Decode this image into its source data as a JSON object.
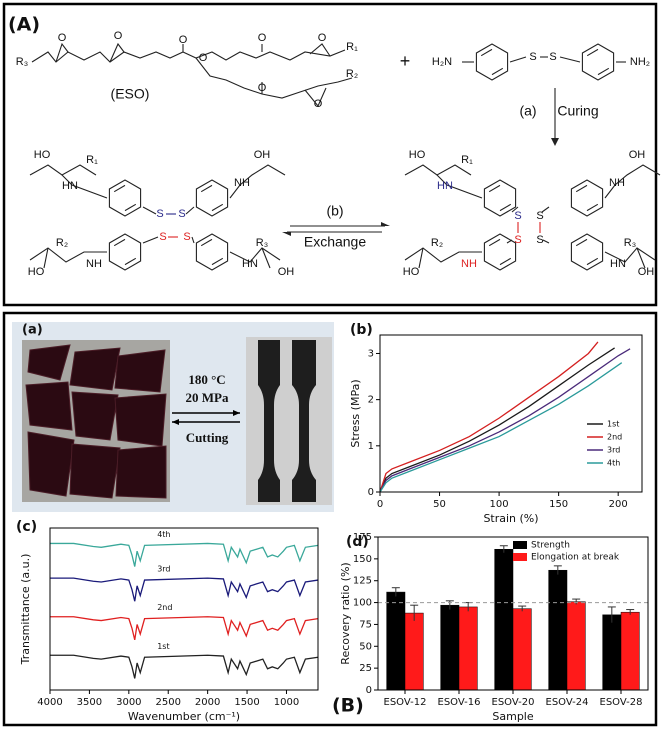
{
  "panel_A": {
    "label": "(A)",
    "texts": [
      "R₃",
      "O",
      "O",
      "O",
      "O",
      "O",
      "O",
      "R₁",
      "O",
      "O",
      "R₂",
      "(ESO)",
      "+",
      "H₂N",
      "S",
      "S",
      "NH₂",
      "(a)",
      "Curing",
      "(b)",
      "Exchange",
      "HO",
      "R₁",
      "HN",
      "S",
      "S",
      "NH",
      "OH",
      "R₂",
      "HO",
      "NH",
      "S",
      "S",
      "HN",
      "R₃",
      "OH",
      "HO",
      "R₁",
      "HN",
      "S",
      "S",
      "NH",
      "OH",
      "R₂",
      "HO",
      "NH",
      "S",
      "S",
      "HN",
      "R₃",
      "OH"
    ]
  },
  "panel_B": {
    "label": "(B)",
    "photo": {
      "panel_label": "(a)",
      "temperature": "180 °C",
      "pressure": "20 MPa",
      "reverse": "Cutting"
    }
  },
  "chart_data": [
    {
      "type": "line",
      "panel_label": "(b)",
      "xlabel": "Strain (%)",
      "ylabel": "Stress (MPa)",
      "xlim": [
        0,
        220
      ],
      "ylim": [
        0,
        3.4
      ],
      "xticks": [
        0,
        50,
        100,
        150,
        200
      ],
      "yticks": [
        0,
        1,
        2,
        3
      ],
      "legend": "lower right",
      "series": [
        {
          "name": "1st",
          "color": "#1a1a1a",
          "x": [
            0,
            5,
            10,
            25,
            50,
            75,
            100,
            125,
            150,
            175,
            197
          ],
          "values": [
            0,
            0.3,
            0.4,
            0.55,
            0.8,
            1.1,
            1.45,
            1.85,
            2.3,
            2.75,
            3.12
          ]
        },
        {
          "name": "2nd",
          "color": "#d42020",
          "x": [
            0,
            5,
            10,
            25,
            50,
            75,
            100,
            125,
            150,
            175,
            183
          ],
          "values": [
            0,
            0.4,
            0.5,
            0.65,
            0.9,
            1.2,
            1.6,
            2.05,
            2.5,
            3.0,
            3.25
          ]
        },
        {
          "name": "3rd",
          "color": "#4a2a7a",
          "x": [
            0,
            5,
            10,
            25,
            50,
            75,
            100,
            125,
            150,
            175,
            200,
            210
          ],
          "values": [
            0,
            0.25,
            0.35,
            0.5,
            0.75,
            1.0,
            1.3,
            1.65,
            2.05,
            2.5,
            2.95,
            3.1
          ]
        },
        {
          "name": "4th",
          "color": "#2a9a9a",
          "x": [
            0,
            5,
            10,
            25,
            50,
            75,
            100,
            125,
            150,
            175,
            203
          ],
          "values": [
            0,
            0.2,
            0.3,
            0.45,
            0.7,
            0.95,
            1.2,
            1.55,
            1.9,
            2.3,
            2.8
          ]
        }
      ]
    },
    {
      "type": "line",
      "panel_label": "(c)",
      "xlabel": "Wavenumber (cm⁻¹)",
      "ylabel": "Transmittance (a.u.)",
      "xlim": [
        4000,
        600
      ],
      "ylim": [
        0,
        4.2
      ],
      "xticks": [
        4000,
        3500,
        3000,
        2500,
        2000,
        1500,
        1000
      ],
      "x": [
        4000,
        3700,
        3450,
        3350,
        3100,
        3000,
        2960,
        2925,
        2895,
        2855,
        2800,
        2000,
        1800,
        1740,
        1700,
        1620,
        1590,
        1510,
        1460,
        1380,
        1300,
        1240,
        1180,
        1110,
        1040,
        1000,
        900,
        830,
        760,
        600
      ],
      "series": [
        {
          "name": "1st",
          "color": "#222222",
          "values": [
            0.9,
            0.9,
            0.82,
            0.8,
            0.88,
            0.85,
            0.6,
            0.3,
            0.7,
            0.45,
            0.85,
            0.9,
            0.88,
            0.45,
            0.8,
            0.55,
            0.75,
            0.4,
            0.7,
            0.75,
            0.8,
            0.55,
            0.6,
            0.55,
            0.7,
            0.8,
            0.85,
            0.45,
            0.8,
            0.85
          ]
        },
        {
          "name": "2nd",
          "color": "#e02020",
          "values": [
            1.9,
            1.9,
            1.82,
            1.8,
            1.88,
            1.85,
            1.6,
            1.3,
            1.7,
            1.45,
            1.85,
            1.9,
            1.88,
            1.45,
            1.8,
            1.55,
            1.75,
            1.4,
            1.7,
            1.75,
            1.8,
            1.55,
            1.6,
            1.55,
            1.7,
            1.8,
            1.85,
            1.45,
            1.8,
            1.85
          ]
        },
        {
          "name": "3rd",
          "color": "#1a1a7a",
          "values": [
            2.9,
            2.9,
            2.82,
            2.8,
            2.88,
            2.85,
            2.6,
            2.3,
            2.7,
            2.45,
            2.85,
            2.9,
            2.88,
            2.45,
            2.8,
            2.55,
            2.75,
            2.4,
            2.7,
            2.75,
            2.8,
            2.55,
            2.6,
            2.55,
            2.7,
            2.8,
            2.85,
            2.45,
            2.8,
            2.85
          ]
        },
        {
          "name": "4th",
          "color": "#3aa89a",
          "values": [
            3.8,
            3.8,
            3.72,
            3.7,
            3.78,
            3.75,
            3.5,
            3.2,
            3.6,
            3.35,
            3.75,
            3.8,
            3.78,
            3.35,
            3.7,
            3.45,
            3.65,
            3.3,
            3.6,
            3.65,
            3.7,
            3.45,
            3.5,
            3.45,
            3.6,
            3.7,
            3.75,
            3.35,
            3.7,
            3.75
          ]
        }
      ]
    },
    {
      "type": "bar",
      "panel_label": "(d)",
      "xlabel": "Sample",
      "ylabel": "Recovery ratio (%)",
      "categories": [
        "ESOV-12",
        "ESOV-16",
        "ESOV-20",
        "ESOV-24",
        "ESOV-28"
      ],
      "ylim": [
        0,
        175
      ],
      "yticks": [
        0,
        25,
        50,
        75,
        100,
        125,
        150,
        175
      ],
      "reference_line": 100,
      "legend": "upper right",
      "series": [
        {
          "name": "Strength",
          "color": "#000000",
          "values": [
            112,
            97,
            161,
            137,
            86
          ],
          "errors": [
            5,
            5,
            4,
            5,
            9
          ]
        },
        {
          "name": "Elongation at break",
          "color": "#ff1a1a",
          "values": [
            88,
            95,
            93,
            101,
            89
          ],
          "errors": [
            9,
            5,
            3,
            3,
            3
          ]
        }
      ]
    }
  ]
}
